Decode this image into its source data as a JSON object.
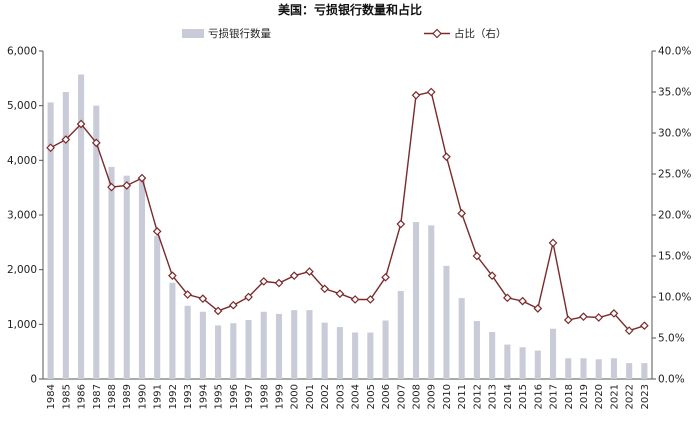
{
  "chart_data": {
    "type": "bar",
    "title": "美国：亏损银行数量和占比",
    "categories": [
      "1984",
      "1985",
      "1986",
      "1987",
      "1988",
      "1989",
      "1990",
      "1991",
      "1992",
      "1993",
      "1994",
      "1995",
      "1996",
      "1997",
      "1998",
      "1999",
      "2000",
      "2001",
      "2002",
      "2003",
      "2004",
      "2005",
      "2006",
      "2007",
      "2008",
      "2009",
      "2010",
      "2011",
      "2012",
      "2013",
      "2014",
      "2015",
      "2016",
      "2017",
      "2018",
      "2019",
      "2020",
      "2021",
      "2022",
      "2023"
    ],
    "series": [
      {
        "name": "亏损银行数量",
        "type": "bar",
        "axis": "left",
        "values": [
          5060,
          5250,
          5570,
          5000,
          3880,
          3720,
          3660,
          2620,
          1760,
          1340,
          1230,
          980,
          1020,
          1080,
          1230,
          1190,
          1260,
          1260,
          1030,
          950,
          850,
          850,
          1070,
          1610,
          2870,
          2810,
          2070,
          1480,
          1060,
          860,
          630,
          580,
          520,
          920,
          380,
          380,
          360,
          380,
          290,
          290
        ]
      },
      {
        "name": "占比（右）",
        "type": "line",
        "axis": "right",
        "values": [
          28.2,
          29.2,
          31.1,
          28.8,
          23.4,
          23.6,
          24.5,
          18.0,
          12.6,
          10.3,
          9.8,
          8.3,
          9.0,
          10.0,
          11.9,
          11.7,
          12.6,
          13.1,
          11.0,
          10.4,
          9.7,
          9.7,
          12.4,
          18.9,
          34.6,
          35.0,
          27.1,
          20.2,
          15.0,
          12.6,
          9.9,
          9.5,
          8.6,
          16.6,
          7.2,
          7.6,
          7.5,
          8.0,
          5.9,
          6.5
        ]
      }
    ],
    "y_left": {
      "ylim": [
        0,
        6000
      ],
      "ticks": [
        "0",
        "1,000",
        "2,000",
        "3,000",
        "4,000",
        "5,000",
        "6,000"
      ]
    },
    "y_right": {
      "ylim": [
        0,
        40
      ],
      "ticks": [
        "0.0%",
        "5.0%",
        "10.0%",
        "15.0%",
        "20.0%",
        "25.0%",
        "30.0%",
        "35.0%",
        "40.0%"
      ]
    },
    "legend_placement": "top",
    "grid": false,
    "colors": {
      "bar": "#c9ccd8",
      "line": "#7b2a2a",
      "marker_fill": "#ffffff"
    }
  }
}
